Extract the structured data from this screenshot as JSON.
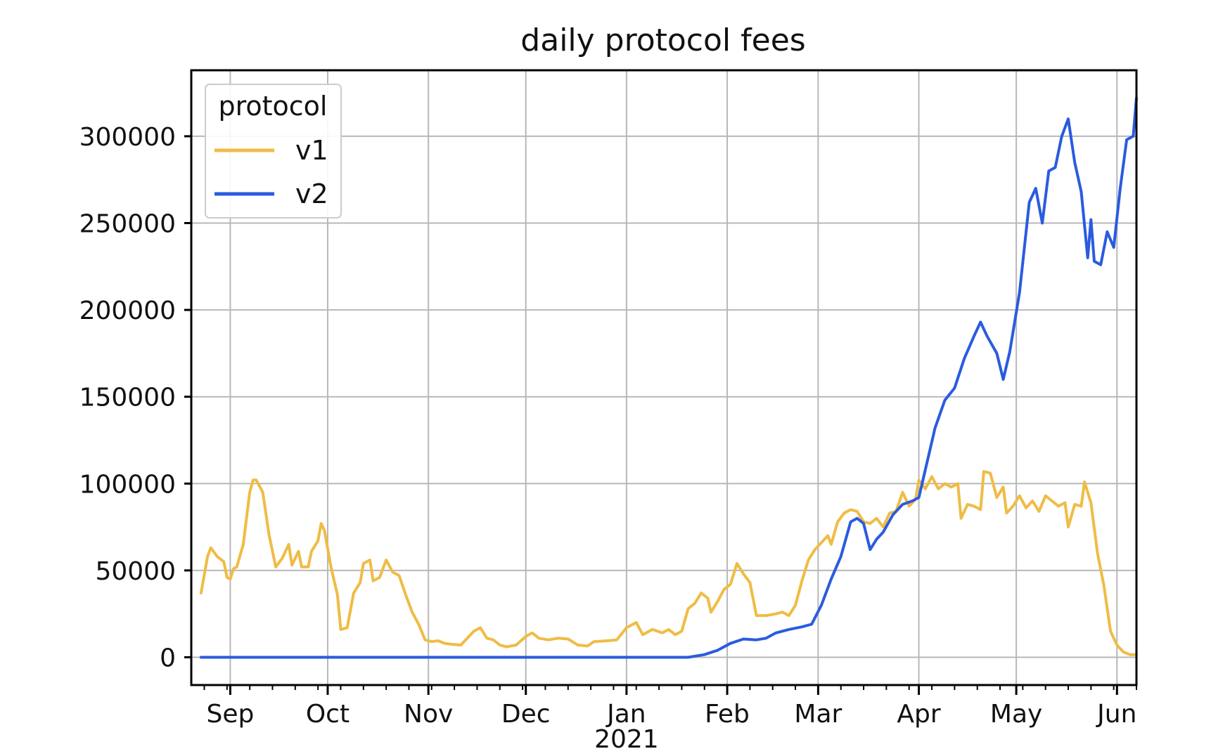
{
  "chart_data": {
    "type": "line",
    "title": "daily protocol fees",
    "xlabel": "",
    "ylabel": "",
    "x_axis": {
      "kind": "date",
      "range": [
        "2020-08-20",
        "2021-06-07"
      ],
      "ticks": [
        {
          "date": "2020-09-01",
          "label": "Sep"
        },
        {
          "date": "2020-10-01",
          "label": "Oct"
        },
        {
          "date": "2020-11-01",
          "label": "Nov"
        },
        {
          "date": "2020-12-01",
          "label": "Dec"
        },
        {
          "date": "2021-01-01",
          "label": "Jan"
        },
        {
          "date": "2021-02-01",
          "label": "Feb"
        },
        {
          "date": "2021-03-01",
          "label": "Mar"
        },
        {
          "date": "2021-04-01",
          "label": "Apr"
        },
        {
          "date": "2021-05-01",
          "label": "May"
        },
        {
          "date": "2021-06-01",
          "label": "Jun"
        }
      ],
      "year_label": "2021"
    },
    "ylim": [
      -16000,
      338000
    ],
    "yticks": [
      0,
      50000,
      100000,
      150000,
      200000,
      250000,
      300000
    ],
    "grid": true,
    "legend": {
      "title": "protocol",
      "position": "top-left"
    },
    "series": [
      {
        "name": "v1",
        "color": "#efbc45",
        "points": [
          [
            "2020-08-23",
            37000
          ],
          [
            "2020-08-25",
            58000
          ],
          [
            "2020-08-26",
            63000
          ],
          [
            "2020-08-28",
            58000
          ],
          [
            "2020-08-30",
            55000
          ],
          [
            "2020-08-31",
            46000
          ],
          [
            "2020-09-01",
            45000
          ],
          [
            "2020-09-02",
            51000
          ],
          [
            "2020-09-03",
            52000
          ],
          [
            "2020-09-05",
            65000
          ],
          [
            "2020-09-07",
            95000
          ],
          [
            "2020-09-08",
            102000
          ],
          [
            "2020-09-09",
            102000
          ],
          [
            "2020-09-11",
            95000
          ],
          [
            "2020-09-13",
            70000
          ],
          [
            "2020-09-15",
            52000
          ],
          [
            "2020-09-17",
            57000
          ],
          [
            "2020-09-19",
            65000
          ],
          [
            "2020-09-20",
            53000
          ],
          [
            "2020-09-22",
            61000
          ],
          [
            "2020-09-23",
            52000
          ],
          [
            "2020-09-25",
            52000
          ],
          [
            "2020-09-26",
            61000
          ],
          [
            "2020-09-28",
            67000
          ],
          [
            "2020-09-29",
            77000
          ],
          [
            "2020-09-30",
            73000
          ],
          [
            "2020-10-02",
            52000
          ],
          [
            "2020-10-04",
            36000
          ],
          [
            "2020-10-05",
            16000
          ],
          [
            "2020-10-07",
            17000
          ],
          [
            "2020-10-09",
            37000
          ],
          [
            "2020-10-11",
            43000
          ],
          [
            "2020-10-12",
            54000
          ],
          [
            "2020-10-14",
            56000
          ],
          [
            "2020-10-15",
            44000
          ],
          [
            "2020-10-17",
            46000
          ],
          [
            "2020-10-19",
            56000
          ],
          [
            "2020-10-21",
            49000
          ],
          [
            "2020-10-23",
            47000
          ],
          [
            "2020-10-25",
            36000
          ],
          [
            "2020-10-27",
            26000
          ],
          [
            "2020-10-29",
            19000
          ],
          [
            "2020-10-31",
            10000
          ],
          [
            "2020-11-02",
            9000
          ],
          [
            "2020-11-04",
            9500
          ],
          [
            "2020-11-06",
            8000
          ],
          [
            "2020-11-08",
            7500
          ],
          [
            "2020-11-11",
            7000
          ],
          [
            "2020-11-13",
            11000
          ],
          [
            "2020-11-15",
            15000
          ],
          [
            "2020-11-17",
            17000
          ],
          [
            "2020-11-19",
            11000
          ],
          [
            "2020-11-21",
            10000
          ],
          [
            "2020-11-23",
            7000
          ],
          [
            "2020-11-25",
            6000
          ],
          [
            "2020-11-28",
            7000
          ],
          [
            "2020-12-01",
            12000
          ],
          [
            "2020-12-03",
            14000
          ],
          [
            "2020-12-05",
            11000
          ],
          [
            "2020-12-08",
            10000
          ],
          [
            "2020-12-11",
            11000
          ],
          [
            "2020-12-14",
            10500
          ],
          [
            "2020-12-17",
            7000
          ],
          [
            "2020-12-20",
            6500
          ],
          [
            "2020-12-22",
            9000
          ],
          [
            "2020-12-26",
            9500
          ],
          [
            "2020-12-29",
            10000
          ],
          [
            "2021-01-01",
            17000
          ],
          [
            "2021-01-04",
            20000
          ],
          [
            "2021-01-06",
            13000
          ],
          [
            "2021-01-09",
            16000
          ],
          [
            "2021-01-12",
            14000
          ],
          [
            "2021-01-14",
            16000
          ],
          [
            "2021-01-16",
            13000
          ],
          [
            "2021-01-18",
            15000
          ],
          [
            "2021-01-20",
            28000
          ],
          [
            "2021-01-22",
            31000
          ],
          [
            "2021-01-24",
            37000
          ],
          [
            "2021-01-26",
            34000
          ],
          [
            "2021-01-27",
            26000
          ],
          [
            "2021-01-29",
            32000
          ],
          [
            "2021-01-31",
            39000
          ],
          [
            "2021-02-02",
            42000
          ],
          [
            "2021-02-04",
            54000
          ],
          [
            "2021-02-06",
            48000
          ],
          [
            "2021-02-08",
            43000
          ],
          [
            "2021-02-10",
            24000
          ],
          [
            "2021-02-13",
            24000
          ],
          [
            "2021-02-16",
            25000
          ],
          [
            "2021-02-18",
            26000
          ],
          [
            "2021-02-20",
            24000
          ],
          [
            "2021-02-22",
            30000
          ],
          [
            "2021-02-24",
            44000
          ],
          [
            "2021-02-26",
            56000
          ],
          [
            "2021-02-28",
            62000
          ],
          [
            "2021-03-02",
            66000
          ],
          [
            "2021-03-04",
            70000
          ],
          [
            "2021-03-05",
            65000
          ],
          [
            "2021-03-07",
            78000
          ],
          [
            "2021-03-09",
            83000
          ],
          [
            "2021-03-11",
            85000
          ],
          [
            "2021-03-13",
            84000
          ],
          [
            "2021-03-15",
            78000
          ],
          [
            "2021-03-17",
            77000
          ],
          [
            "2021-03-19",
            80000
          ],
          [
            "2021-03-21",
            75000
          ],
          [
            "2021-03-23",
            83000
          ],
          [
            "2021-03-25",
            84000
          ],
          [
            "2021-03-27",
            95000
          ],
          [
            "2021-03-29",
            87000
          ],
          [
            "2021-03-31",
            91000
          ],
          [
            "2021-04-01",
            102000
          ],
          [
            "2021-04-03",
            97000
          ],
          [
            "2021-04-05",
            104000
          ],
          [
            "2021-04-07",
            97000
          ],
          [
            "2021-04-09",
            100000
          ],
          [
            "2021-04-11",
            98000
          ],
          [
            "2021-04-13",
            100000
          ],
          [
            "2021-04-14",
            80000
          ],
          [
            "2021-04-16",
            88000
          ],
          [
            "2021-04-18",
            87000
          ],
          [
            "2021-04-20",
            85000
          ],
          [
            "2021-04-21",
            107000
          ],
          [
            "2021-04-23",
            106000
          ],
          [
            "2021-04-25",
            92000
          ],
          [
            "2021-04-27",
            98000
          ],
          [
            "2021-04-28",
            83000
          ],
          [
            "2021-04-30",
            87000
          ],
          [
            "2021-05-02",
            93000
          ],
          [
            "2021-05-04",
            86000
          ],
          [
            "2021-05-06",
            90000
          ],
          [
            "2021-05-08",
            84000
          ],
          [
            "2021-05-10",
            93000
          ],
          [
            "2021-05-12",
            90000
          ],
          [
            "2021-05-14",
            87000
          ],
          [
            "2021-05-16",
            89000
          ],
          [
            "2021-05-17",
            75000
          ],
          [
            "2021-05-19",
            88000
          ],
          [
            "2021-05-21",
            87000
          ],
          [
            "2021-05-22",
            101000
          ],
          [
            "2021-05-24",
            89000
          ],
          [
            "2021-05-26",
            60000
          ],
          [
            "2021-05-28",
            41000
          ],
          [
            "2021-05-30",
            15000
          ],
          [
            "2021-06-01",
            7000
          ],
          [
            "2021-06-03",
            3000
          ],
          [
            "2021-06-05",
            1500
          ],
          [
            "2021-06-07",
            1500
          ]
        ]
      },
      {
        "name": "v2",
        "color": "#2a5be0",
        "points": [
          [
            "2020-08-23",
            0
          ],
          [
            "2021-01-20",
            0
          ],
          [
            "2021-01-25",
            1500
          ],
          [
            "2021-01-29",
            4000
          ],
          [
            "2021-02-02",
            8000
          ],
          [
            "2021-02-06",
            10500
          ],
          [
            "2021-02-10",
            10000
          ],
          [
            "2021-02-13",
            11000
          ],
          [
            "2021-02-16",
            14000
          ],
          [
            "2021-02-20",
            16000
          ],
          [
            "2021-02-24",
            17500
          ],
          [
            "2021-02-27",
            19000
          ],
          [
            "2021-03-02",
            30000
          ],
          [
            "2021-03-05",
            45000
          ],
          [
            "2021-03-08",
            58000
          ],
          [
            "2021-03-11",
            78000
          ],
          [
            "2021-03-13",
            80000
          ],
          [
            "2021-03-15",
            77000
          ],
          [
            "2021-03-17",
            62000
          ],
          [
            "2021-03-19",
            68000
          ],
          [
            "2021-03-21",
            72000
          ],
          [
            "2021-03-24",
            82000
          ],
          [
            "2021-03-27",
            88000
          ],
          [
            "2021-03-30",
            90000
          ],
          [
            "2021-04-01",
            92000
          ],
          [
            "2021-04-03",
            108000
          ],
          [
            "2021-04-06",
            132000
          ],
          [
            "2021-04-09",
            148000
          ],
          [
            "2021-04-12",
            155000
          ],
          [
            "2021-04-15",
            172000
          ],
          [
            "2021-04-18",
            185000
          ],
          [
            "2021-04-20",
            193000
          ],
          [
            "2021-04-22",
            185000
          ],
          [
            "2021-04-25",
            175000
          ],
          [
            "2021-04-27",
            160000
          ],
          [
            "2021-04-29",
            176000
          ],
          [
            "2021-05-02",
            210000
          ],
          [
            "2021-05-05",
            262000
          ],
          [
            "2021-05-07",
            270000
          ],
          [
            "2021-05-09",
            250000
          ],
          [
            "2021-05-11",
            280000
          ],
          [
            "2021-05-13",
            282000
          ],
          [
            "2021-05-15",
            300000
          ],
          [
            "2021-05-17",
            310000
          ],
          [
            "2021-05-19",
            285000
          ],
          [
            "2021-05-21",
            268000
          ],
          [
            "2021-05-23",
            230000
          ],
          [
            "2021-05-24",
            252000
          ],
          [
            "2021-05-25",
            228000
          ],
          [
            "2021-05-27",
            226000
          ],
          [
            "2021-05-29",
            245000
          ],
          [
            "2021-05-31",
            236000
          ],
          [
            "2021-06-02",
            270000
          ],
          [
            "2021-06-04",
            298000
          ],
          [
            "2021-06-06",
            300000
          ],
          [
            "2021-06-07",
            322000
          ]
        ]
      }
    ]
  }
}
